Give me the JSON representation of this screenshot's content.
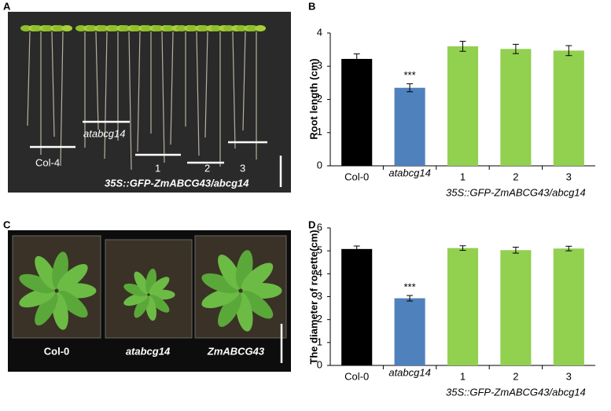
{
  "panels": [
    "A",
    "B",
    "C",
    "D"
  ],
  "photo_a": {
    "labels": [
      "Col-4",
      "atabcg14",
      "1",
      "2",
      "3",
      "35S::GFP-ZmABCG43/abcg14"
    ]
  },
  "photo_c": {
    "labels": [
      "Col-0",
      "atabcg14",
      "ZmABCG43"
    ]
  },
  "chart_data": [
    {
      "type": "bar",
      "y_label": "Root length (cm)",
      "categories": [
        "Col-0",
        "atabcg14",
        "1",
        "2",
        "3"
      ],
      "values": [
        3.22,
        2.35,
        3.6,
        3.52,
        3.47
      ],
      "errors": [
        0.15,
        0.12,
        0.15,
        0.14,
        0.15
      ],
      "colors": [
        "#000000",
        "#4f81bd",
        "#92d050",
        "#92d050",
        "#92d050"
      ],
      "annotation": "***",
      "group_label": "35S::GFP-ZmABCG43/abcg14",
      "ylim": [
        0,
        4
      ],
      "yticks": [
        0,
        1,
        2,
        3,
        4
      ]
    },
    {
      "type": "bar",
      "y_label": "The diameter of rosette(cm)",
      "categories": [
        "Col-0",
        "atabcg14",
        "1",
        "2",
        "3"
      ],
      "values": [
        5.08,
        2.93,
        5.12,
        5.03,
        5.1
      ],
      "errors": [
        0.13,
        0.12,
        0.1,
        0.13,
        0.1
      ],
      "colors": [
        "#000000",
        "#4f81bd",
        "#92d050",
        "#92d050",
        "#92d050"
      ],
      "annotation": "***",
      "group_label": "35S::GFP-ZmABCG43/abcg14",
      "ylim": [
        0,
        6
      ],
      "yticks": [
        0,
        1,
        2,
        3,
        4,
        5,
        6
      ]
    }
  ]
}
